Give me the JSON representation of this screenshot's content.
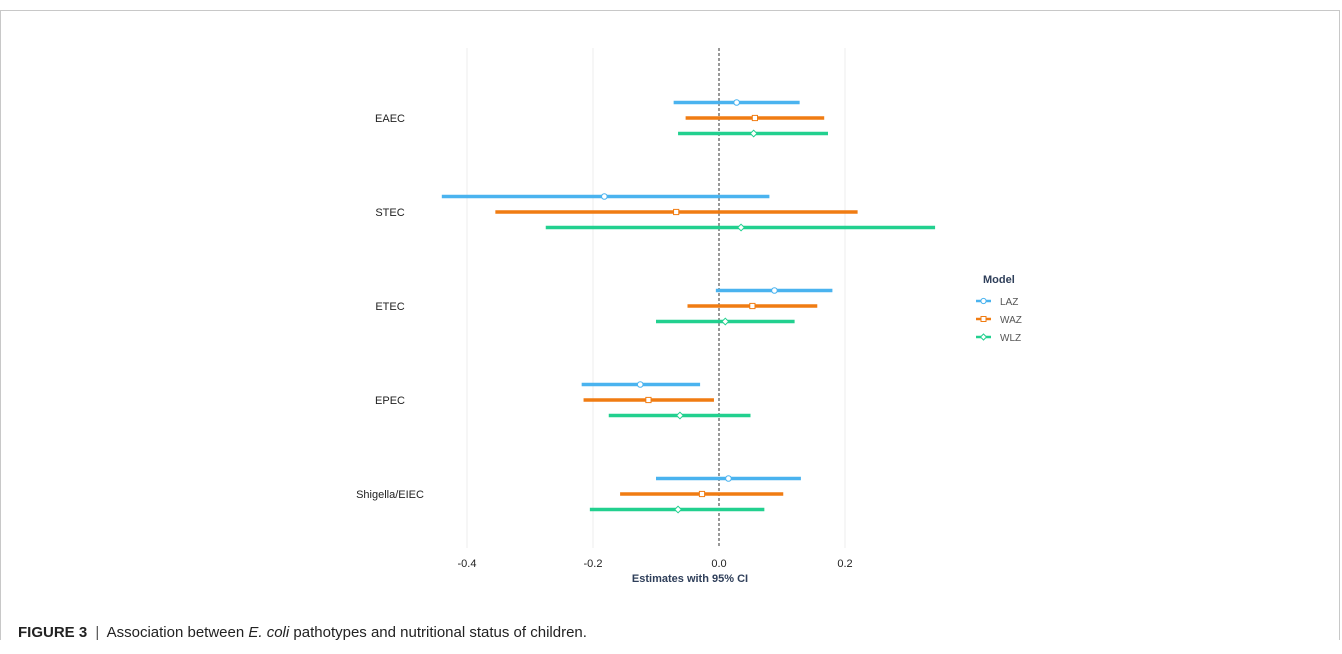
{
  "chart_data": {
    "type": "forest",
    "xlabel": "Estimates with 95% CI",
    "xlim": [
      -0.6,
      0.4
    ],
    "xticks": [
      -0.4,
      -0.2,
      0.0,
      0.2
    ],
    "xtick_labels": [
      "-0.4",
      "-0.2",
      "0.0",
      "0.2"
    ],
    "reference_line": 0.0,
    "categories": [
      "EAEC",
      "STEC",
      "ETEC",
      "EPEC",
      "Shigella/EIEC"
    ],
    "legend": {
      "title": "Model",
      "position": "right"
    },
    "series": [
      {
        "name": "LAZ",
        "color": "#4ab3ef",
        "marker": "circle",
        "estimates": [
          0.028,
          -0.182,
          0.088,
          -0.125,
          0.015
        ],
        "lower": [
          -0.072,
          -0.44,
          -0.005,
          -0.218,
          -0.1
        ],
        "upper": [
          0.128,
          0.08,
          0.18,
          -0.03,
          0.13
        ]
      },
      {
        "name": "WAZ",
        "color": "#f07c12",
        "marker": "square",
        "estimates": [
          0.057,
          -0.068,
          0.053,
          -0.112,
          -0.027
        ],
        "lower": [
          -0.053,
          -0.355,
          -0.05,
          -0.215,
          -0.157
        ],
        "upper": [
          0.167,
          0.22,
          0.156,
          -0.008,
          0.102
        ]
      },
      {
        "name": "WLZ",
        "color": "#22d08f",
        "marker": "diamond",
        "estimates": [
          0.055,
          0.035,
          0.01,
          -0.062,
          -0.065
        ],
        "lower": [
          -0.065,
          -0.275,
          -0.1,
          -0.175,
          -0.205
        ],
        "upper": [
          0.173,
          0.343,
          0.12,
          0.05,
          0.072
        ]
      }
    ]
  },
  "caption": {
    "label": "FIGURE 3",
    "separator": "|",
    "text_before": "Association between ",
    "text_italic": "E. coli",
    "text_after": " pathotypes and nutritional status of children."
  }
}
